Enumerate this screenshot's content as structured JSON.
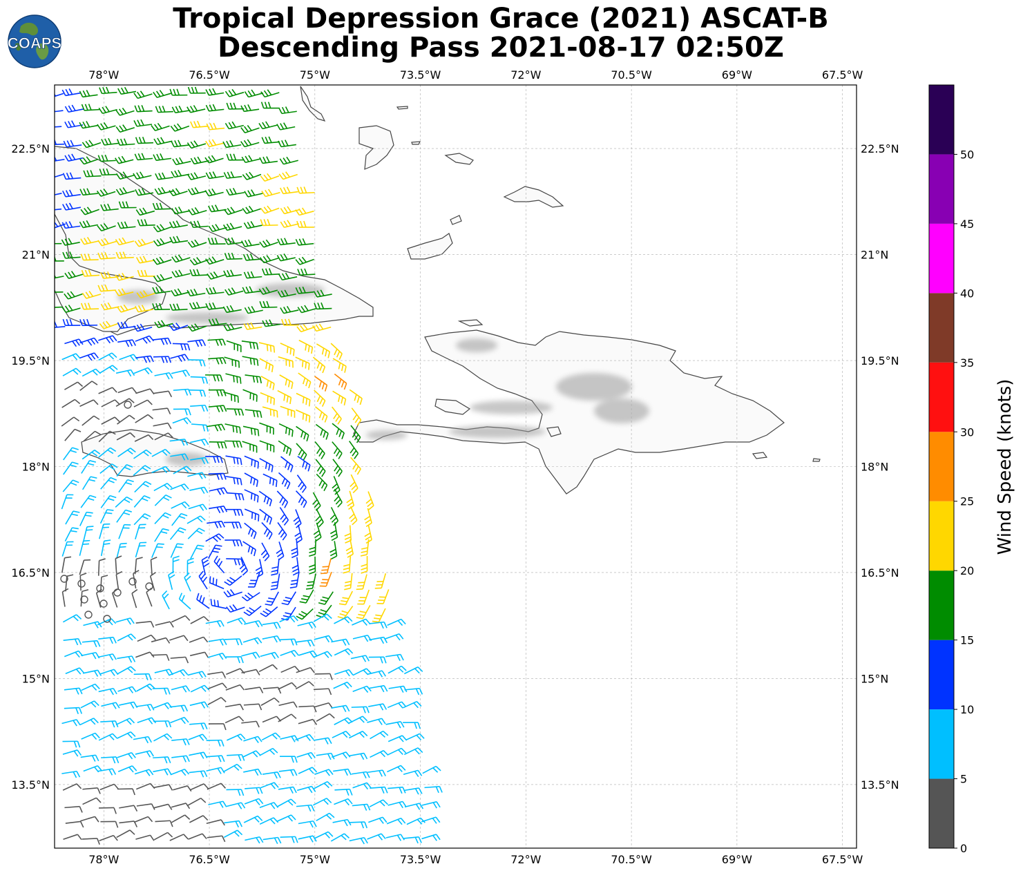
{
  "title": {
    "line1": "Tropical Depression Grace (2021) ASCAT-B",
    "line2": "Descending Pass 2021-08-17 02:50Z"
  },
  "logo": {
    "text": "COAPS",
    "icon": "globe-logo-icon"
  },
  "map": {
    "lon_range": [
      -78.7,
      -67.3
    ],
    "lat_range": [
      12.6,
      23.4
    ],
    "lon_ticks": [
      "78°W",
      "76.5°W",
      "75°W",
      "73.5°W",
      "72°W",
      "70.5°W",
      "69°W",
      "67.5°W"
    ],
    "lat_ticks": [
      "22.5°N",
      "21°N",
      "19.5°N",
      "18°N",
      "16.5°N",
      "15°N",
      "13.5°N"
    ],
    "lon_values": [
      -78,
      -76.5,
      -75,
      -73.5,
      -72,
      -70.5,
      -69,
      -67.5
    ],
    "lat_values": [
      22.5,
      21,
      19.5,
      18,
      16.5,
      15,
      13.5
    ],
    "land_labels": []
  },
  "colorbar": {
    "label": "Wind Speed (knots)",
    "bins": [
      {
        "min": 0,
        "max": 5,
        "color": "#555555"
      },
      {
        "min": 5,
        "max": 10,
        "color": "#00bfff"
      },
      {
        "min": 10,
        "max": 15,
        "color": "#0033ff"
      },
      {
        "min": 15,
        "max": 20,
        "color": "#008c00"
      },
      {
        "min": 20,
        "max": 25,
        "color": "#ffd700"
      },
      {
        "min": 25,
        "max": 30,
        "color": "#ff8c00"
      },
      {
        "min": 30,
        "max": 35,
        "color": "#ff1010"
      },
      {
        "min": 35,
        "max": 40,
        "color": "#7f3a28"
      },
      {
        "min": 40,
        "max": 45,
        "color": "#ff00ff"
      },
      {
        "min": 45,
        "max": 50,
        "color": "#8800b3"
      },
      {
        "min": 50,
        "max": 55,
        "color": "#2a0055"
      }
    ],
    "tick_labels": [
      "0",
      "5",
      "10",
      "15",
      "20",
      "25",
      "30",
      "35",
      "40",
      "45",
      "50"
    ]
  }
}
